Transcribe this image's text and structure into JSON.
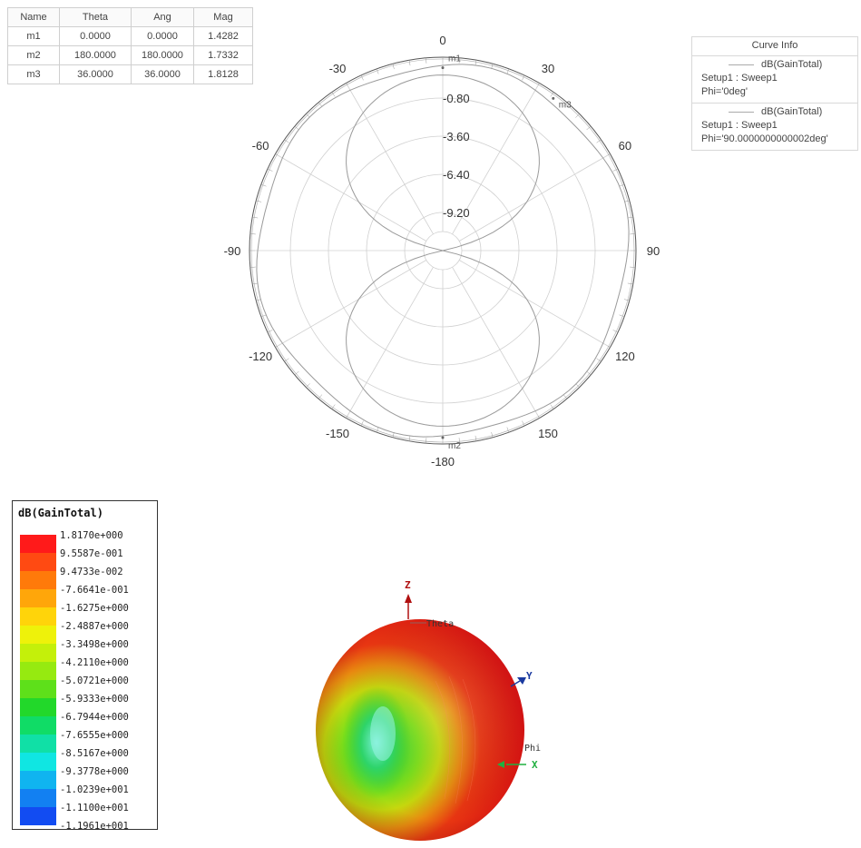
{
  "marker_table": {
    "headers": [
      "Name",
      "Theta",
      "Ang",
      "Mag"
    ],
    "rows": [
      [
        "m1",
        "0.0000",
        "0.0000",
        "1.4282"
      ],
      [
        "m2",
        "180.0000",
        "180.0000",
        "1.7332"
      ],
      [
        "m3",
        "36.0000",
        "36.0000",
        "1.8128"
      ]
    ]
  },
  "curve_info": {
    "title": "Curve Info",
    "entries": [
      {
        "quantity": "dB(GainTotal)",
        "setup": "Setup1 : Sweep1",
        "param": "Phi='0deg'"
      },
      {
        "quantity": "dB(GainTotal)",
        "setup": "Setup1 : Sweep1",
        "param": "Phi='90.0000000000002deg'"
      }
    ]
  },
  "chart_data": [
    {
      "type": "polar",
      "angle_ticks": [
        0,
        30,
        60,
        90,
        120,
        150,
        -180,
        -150,
        -120,
        -90,
        -60,
        -30
      ],
      "angle_tick_labels": [
        "0",
        "30",
        "60",
        "90",
        "120",
        "150",
        "-180",
        "-150",
        "-120",
        "-90",
        "-60",
        "-30"
      ],
      "radial_ticks": [
        -0.8,
        -3.6,
        -6.4,
        -9.2
      ],
      "radial_tick_labels": [
        "-0.80",
        "-3.60",
        "-6.40",
        "-9.20"
      ],
      "rlim": [
        -12,
        2
      ],
      "series": [
        {
          "values_model": "dipole-figure-eight",
          "color": "#9a9a9a"
        },
        {
          "values_model": "omnidirectional",
          "color": "#9a9a9a"
        }
      ],
      "markers": [
        {
          "name": "m1",
          "theta": 0.0,
          "mag": 1.4282
        },
        {
          "name": "m2",
          "theta": 180.0,
          "mag": 1.7332
        },
        {
          "name": "m3",
          "theta": 36.0,
          "mag": 1.8128
        }
      ]
    },
    {
      "type": "heatmap",
      "title": "dB(GainTotal)",
      "colorbar": {
        "labels": [
          "1.8170e+000",
          "9.5587e-001",
          "9.4733e-002",
          "-7.6641e-001",
          "-1.6275e+000",
          "-2.4887e+000",
          "-3.3498e+000",
          "-4.2110e+000",
          "-5.0721e+000",
          "-5.9333e+000",
          "-6.7944e+000",
          "-7.6555e+000",
          "-8.5167e+000",
          "-9.3778e+000",
          "-1.0239e+001",
          "-1.1100e+001",
          "-1.1961e+001"
        ],
        "colors": [
          "#ff1a1a",
          "#ff4a12",
          "#ff7a0a",
          "#ffa60a",
          "#ffd40a",
          "#eef20a",
          "#c4f00a",
          "#96ea10",
          "#5ee01a",
          "#22d82a",
          "#10dc66",
          "#10e0a6",
          "#10e6e2",
          "#10b4f0",
          "#1280f2",
          "#124cf2",
          "#0a1ef0"
        ]
      },
      "axes_labels": {
        "z": "Z",
        "y": "Y",
        "x": "X",
        "theta": "Theta",
        "phi": "Phi"
      }
    }
  ]
}
